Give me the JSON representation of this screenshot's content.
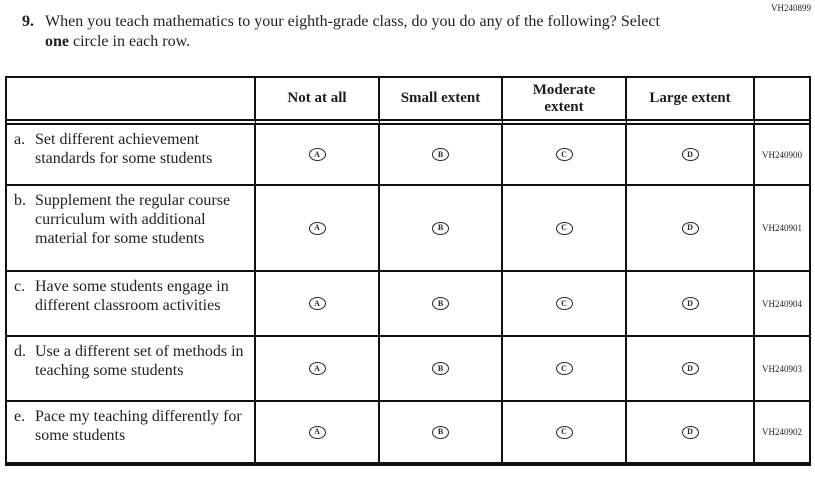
{
  "page": {
    "top_right_code": "VH240899"
  },
  "question": {
    "number": "9.",
    "text_before_bold": "When you teach mathematics to your eighth-grade class, do you do any of the following? Select ",
    "bold_word": "one",
    "text_after_bold": " circle in each row."
  },
  "table": {
    "columns": [
      "",
      "Not at all",
      "Small extent",
      "Moderate\nextent",
      "Large extent",
      ""
    ],
    "options": [
      "A",
      "B",
      "C",
      "D"
    ],
    "rows": [
      {
        "prefix": "a.",
        "label": "Set different achievement standards for some students",
        "code": "VH240900"
      },
      {
        "prefix": "b.",
        "label": "Supplement the regular course curriculum with additional material for some students",
        "code": "VH240901"
      },
      {
        "prefix": "c.",
        "label": "Have some students engage in different classroom activities",
        "code": "VH240904"
      },
      {
        "prefix": "d.",
        "label": "Use a different set of methods in teaching some students",
        "code": "VH240903"
      },
      {
        "prefix": "e.",
        "label": "Pace my teaching differently for some students",
        "code": "VH240902"
      }
    ]
  }
}
